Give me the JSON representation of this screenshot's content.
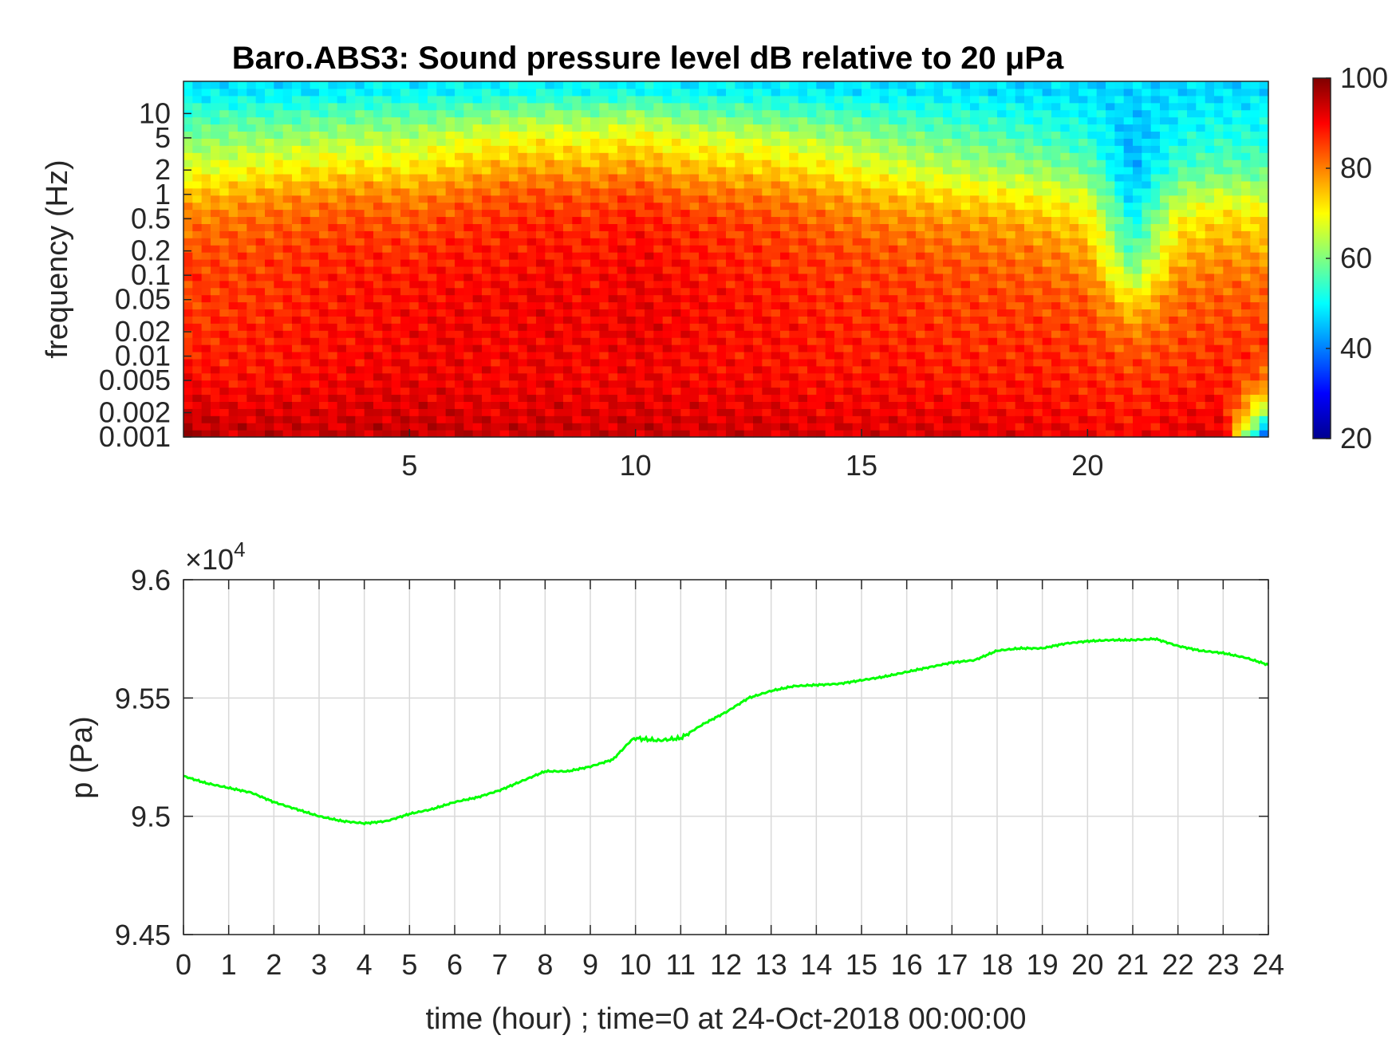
{
  "chart_data": [
    {
      "type": "heatmap",
      "title": "Baro.ABS3: Sound pressure level dB relative to 20 μPa",
      "ylabel": "frequency (Hz)",
      "yscale": "log",
      "ytick_labels": [
        "10",
        "5",
        "2",
        "1",
        "0.5",
        "0.2",
        "0.1",
        "0.05",
        "0.02",
        "0.01",
        "0.005",
        "0.002",
        "0.001"
      ],
      "yticks": [
        10,
        5,
        2,
        1,
        0.5,
        0.2,
        0.1,
        0.05,
        0.02,
        0.01,
        0.005,
        0.002,
        0.001
      ],
      "ylim": [
        0.001,
        25
      ],
      "xlim": [
        0,
        24
      ],
      "xtick_labels": [
        "5",
        "10",
        "15",
        "20"
      ],
      "xticks": [
        5,
        10,
        15,
        20
      ],
      "colormap": "jet",
      "colorbar": {
        "range": [
          20,
          100
        ],
        "ticks": [
          20,
          40,
          60,
          80,
          100
        ],
        "tick_labels": [
          "20",
          "40",
          "60",
          "80",
          "100"
        ]
      },
      "x_hours": [
        0,
        1,
        2,
        3,
        4,
        5,
        6,
        7,
        8,
        9,
        10,
        11,
        12,
        13,
        14,
        15,
        16,
        17,
        18,
        19,
        20,
        21,
        22,
        23,
        24
      ],
      "f_hz": [
        0.001,
        0.002,
        0.005,
        0.01,
        0.02,
        0.05,
        0.1,
        0.2,
        0.5,
        1,
        2,
        5,
        10,
        20
      ],
      "level_db": [
        [
          97,
          94,
          90,
          88,
          86,
          85,
          86,
          84,
          80,
          75,
          68,
          60,
          54,
          48
        ],
        [
          95,
          92,
          89,
          88,
          87,
          86,
          85,
          84,
          81,
          76,
          69,
          61,
          55,
          48
        ],
        [
          95,
          93,
          89,
          88,
          88,
          86,
          86,
          85,
          82,
          78,
          71,
          62,
          55,
          48
        ],
        [
          94,
          92,
          90,
          89,
          89,
          88,
          87,
          86,
          83,
          79,
          72,
          63,
          56,
          48
        ],
        [
          95,
          93,
          91,
          90,
          89,
          89,
          88,
          87,
          84,
          80,
          73,
          64,
          57,
          49
        ],
        [
          95,
          93,
          91,
          90,
          90,
          89,
          88,
          86,
          83,
          79,
          72,
          64,
          57,
          49
        ],
        [
          95,
          93,
          91,
          91,
          91,
          90,
          89,
          88,
          85,
          81,
          75,
          67,
          58,
          49
        ],
        [
          94,
          92,
          90,
          90,
          90,
          90,
          89,
          88,
          86,
          83,
          77,
          69,
          60,
          50
        ],
        [
          95,
          93,
          91,
          91,
          91,
          91,
          90,
          89,
          87,
          84,
          78,
          70,
          61,
          50
        ],
        [
          94,
          92,
          90,
          90,
          90,
          90,
          89,
          88,
          86,
          83,
          77,
          69,
          60,
          50
        ],
        [
          95,
          93,
          91,
          91,
          92,
          91,
          91,
          90,
          88,
          85,
          79,
          71,
          62,
          50
        ],
        [
          94,
          92,
          90,
          90,
          90,
          90,
          89,
          88,
          86,
          82,
          76,
          68,
          59,
          49
        ],
        [
          94,
          92,
          90,
          89,
          89,
          89,
          88,
          87,
          85,
          81,
          75,
          67,
          58,
          49
        ],
        [
          94,
          92,
          90,
          89,
          89,
          88,
          87,
          86,
          84,
          80,
          74,
          66,
          57,
          49
        ],
        [
          93,
          91,
          89,
          88,
          88,
          87,
          86,
          85,
          82,
          78,
          72,
          64,
          56,
          48
        ],
        [
          93,
          91,
          89,
          88,
          87,
          86,
          85,
          84,
          80,
          76,
          69,
          62,
          55,
          48
        ],
        [
          93,
          91,
          89,
          88,
          87,
          86,
          85,
          83,
          79,
          74,
          67,
          60,
          54,
          48
        ],
        [
          93,
          91,
          88,
          87,
          86,
          85,
          84,
          82,
          78,
          72,
          65,
          58,
          53,
          48
        ],
        [
          92,
          90,
          88,
          87,
          86,
          85,
          83,
          81,
          77,
          71,
          63,
          57,
          52,
          47
        ],
        [
          92,
          90,
          88,
          87,
          86,
          84,
          82,
          80,
          75,
          69,
          62,
          55,
          51,
          47
        ],
        [
          91,
          89,
          87,
          86,
          85,
          83,
          80,
          77,
          72,
          66,
          59,
          53,
          50,
          47
        ],
        [
          90,
          88,
          86,
          84,
          80,
          72,
          62,
          55,
          50,
          46,
          44,
          44,
          46,
          47
        ],
        [
          92,
          90,
          87,
          85,
          84,
          82,
          79,
          75,
          70,
          63,
          56,
          51,
          49,
          47
        ],
        [
          93,
          90,
          88,
          87,
          85,
          83,
          81,
          78,
          73,
          66,
          58,
          53,
          50,
          47
        ],
        [
          30,
          60,
          80,
          85,
          85,
          83,
          80,
          77,
          72,
          65,
          57,
          52,
          50,
          47
        ]
      ]
    },
    {
      "type": "line",
      "xlabel": "time (hour) ; time=0 at 24-Oct-2018 00:00:00",
      "ylabel": "p (Pa)",
      "y_exponent_label": "×10",
      "y_exponent_power": "4",
      "xlim": [
        0,
        24
      ],
      "ylim": [
        94500,
        96000
      ],
      "yticks": [
        94500,
        95000,
        95500,
        96000
      ],
      "ytick_labels": [
        "9.45",
        "9.5",
        "9.55",
        "9.6"
      ],
      "xticks": [
        0,
        1,
        2,
        3,
        4,
        5,
        6,
        7,
        8,
        9,
        10,
        11,
        12,
        13,
        14,
        15,
        16,
        17,
        18,
        19,
        20,
        21,
        22,
        23,
        24
      ],
      "xtick_labels": [
        "0",
        "1",
        "2",
        "3",
        "4",
        "5",
        "6",
        "7",
        "8",
        "9",
        "10",
        "11",
        "12",
        "13",
        "14",
        "15",
        "16",
        "17",
        "18",
        "19",
        "20",
        "21",
        "22",
        "23",
        "24"
      ],
      "grid": true,
      "series": [
        {
          "color": "#00ff00",
          "x": [
            0,
            0.5,
            1,
            1.5,
            2,
            2.5,
            3,
            3.5,
            4,
            4.5,
            5,
            5.5,
            6,
            6.5,
            7,
            7.5,
            8,
            8.5,
            9,
            9.5,
            9.9,
            10,
            10.5,
            11,
            11.5,
            12,
            12.5,
            13,
            13.5,
            14,
            14.5,
            15,
            15.5,
            16,
            16.5,
            17,
            17.5,
            18,
            18.5,
            19,
            19.5,
            20,
            20.5,
            21,
            21.5,
            22,
            22.5,
            23,
            23.5,
            24
          ],
          "y": [
            95170,
            95140,
            95120,
            95100,
            95060,
            95030,
            95000,
            94980,
            94970,
            94980,
            95010,
            95030,
            95060,
            95080,
            95110,
            95150,
            95190,
            95190,
            95210,
            95240,
            95320,
            95330,
            95320,
            95330,
            95390,
            95440,
            95500,
            95530,
            95550,
            95555,
            95560,
            95575,
            95590,
            95610,
            95630,
            95650,
            95660,
            95700,
            95710,
            95710,
            95730,
            95740,
            95745,
            95745,
            95750,
            95720,
            95700,
            95690,
            95670,
            95640
          ]
        }
      ]
    }
  ]
}
